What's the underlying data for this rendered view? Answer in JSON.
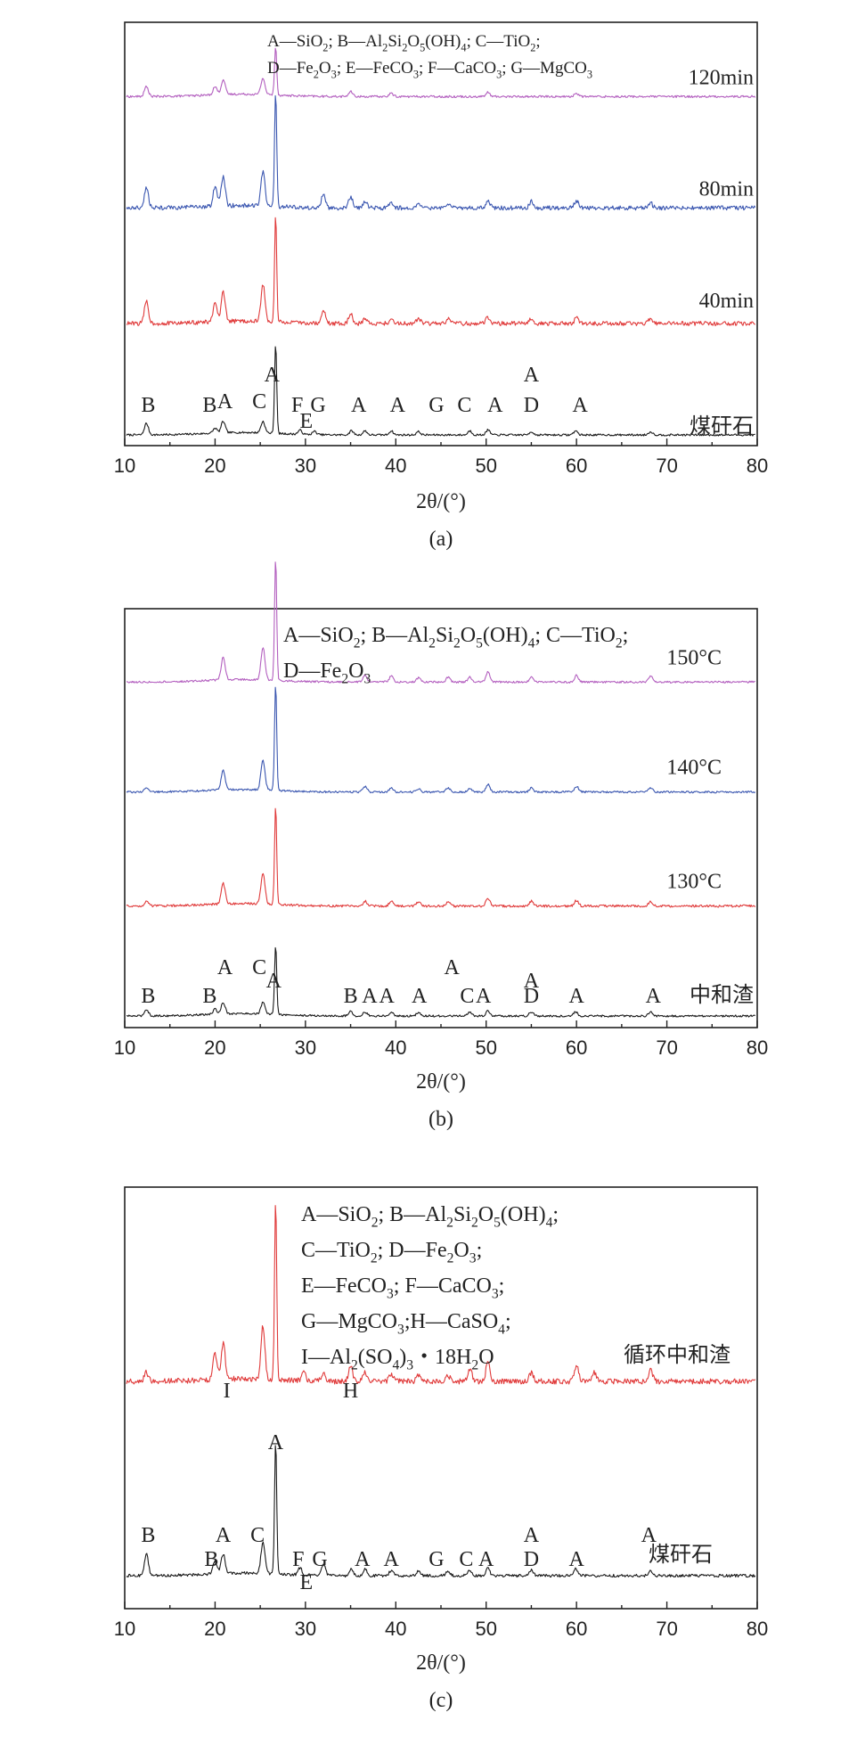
{
  "chart_data": [
    {
      "type": "line",
      "panel": "(a)",
      "xlabel": "2θ/(°)",
      "xlim": [
        10,
        80
      ],
      "x_ticks": [
        "10",
        "20",
        "30",
        "40",
        "50",
        "60",
        "70",
        "80"
      ],
      "legend_lines": [
        "A—SiO₂; B—Al₂Si₂O₅(OH)₄; C—TiO₂;",
        "D—Fe₂O₃; E—FeCO₃; F—CaCO₃; G—MgCO₃"
      ],
      "series": [
        {
          "name": "煤矸石",
          "color": "#1a1a1a",
          "offset": 0,
          "peaks": [
            [
              12.4,
              14
            ],
            [
              20.0,
              6
            ],
            [
              20.9,
              14
            ],
            [
              25.3,
              14
            ],
            [
              26.7,
              110
            ],
            [
              29.4,
              5
            ],
            [
              31.0,
              4
            ],
            [
              35.1,
              5
            ],
            [
              36.6,
              5
            ],
            [
              39.5,
              5
            ],
            [
              42.5,
              4
            ],
            [
              48.2,
              5
            ],
            [
              50.2,
              6
            ],
            [
              55.0,
              4
            ],
            [
              59.9,
              5
            ],
            [
              68.2,
              4
            ]
          ],
          "noise": 1.2
        },
        {
          "name": "40min",
          "color": "#e03a3a",
          "offset": 0.27,
          "peaks": [
            [
              12.4,
              28
            ],
            [
              20.0,
              22
            ],
            [
              20.9,
              35
            ],
            [
              25.3,
              45
            ],
            [
              26.7,
              130
            ],
            [
              32.0,
              15
            ],
            [
              35.0,
              12
            ],
            [
              36.6,
              6
            ],
            [
              39.5,
              6
            ],
            [
              42.5,
              6
            ],
            [
              45.8,
              5
            ],
            [
              50.2,
              8
            ],
            [
              55.0,
              7
            ],
            [
              60.0,
              7
            ],
            [
              68.2,
              6
            ]
          ],
          "noise": 2.6
        },
        {
          "name": "80min",
          "color": "#3a56b0",
          "offset": 0.55,
          "peaks": [
            [
              12.4,
              26
            ],
            [
              20.0,
              24
            ],
            [
              20.9,
              36
            ],
            [
              25.3,
              42
            ],
            [
              26.7,
              140
            ],
            [
              32.0,
              17
            ],
            [
              35.0,
              14
            ],
            [
              36.6,
              8
            ],
            [
              39.5,
              7
            ],
            [
              42.5,
              6
            ],
            [
              45.8,
              6
            ],
            [
              50.2,
              9
            ],
            [
              55.0,
              8
            ],
            [
              60.0,
              9
            ],
            [
              68.2,
              6
            ]
          ],
          "noise": 2.6
        },
        {
          "name": "120min",
          "color": "#b35fbf",
          "offset": 0.82,
          "peaks": [
            [
              12.4,
              12
            ],
            [
              20.0,
              10
            ],
            [
              20.9,
              18
            ],
            [
              25.3,
              20
            ],
            [
              26.7,
              60
            ],
            [
              35.0,
              6
            ],
            [
              39.5,
              4
            ],
            [
              50.2,
              5
            ],
            [
              60.0,
              4
            ]
          ],
          "noise": 1.3
        }
      ],
      "series_labels": [
        "煤矸石",
        "40min",
        "80min",
        "120min"
      ],
      "peak_labels": [
        {
          "text": "B",
          "x": 12.6,
          "row": 2
        },
        {
          "text": "B",
          "x": 19.4,
          "row": 2
        },
        {
          "text": "A",
          "x": 21.1,
          "row": 1
        },
        {
          "text": "C",
          "x": 24.9,
          "row": 1
        },
        {
          "text": "A",
          "x": 26.3,
          "row": 0
        },
        {
          "text": "F",
          "x": 29.1,
          "row": 2
        },
        {
          "text": "E",
          "x": 30.1,
          "row": 3
        },
        {
          "text": "G",
          "x": 31.4,
          "row": 2
        },
        {
          "text": "A",
          "x": 35.9,
          "row": 2
        },
        {
          "text": "A",
          "x": 40.2,
          "row": 2
        },
        {
          "text": "G",
          "x": 44.5,
          "row": 2
        },
        {
          "text": "C",
          "x": 47.6,
          "row": 2
        },
        {
          "text": "A",
          "x": 51.0,
          "row": 2
        },
        {
          "text": "A",
          "x": 55.0,
          "row": 0
        },
        {
          "text": "D",
          "x": 55.0,
          "row": 2
        },
        {
          "text": "A",
          "x": 60.4,
          "row": 2
        }
      ]
    },
    {
      "type": "line",
      "panel": "(b)",
      "xlabel": "2θ/(°)",
      "xlim": [
        10,
        80
      ],
      "x_ticks": [
        "10",
        "20",
        "30",
        "40",
        "50",
        "60",
        "70",
        "80"
      ],
      "legend_lines": [
        "A—SiO₂; B—Al₂Si₂O₅(OH)₄; C—TiO₂;",
        "D—Fe₂O₃"
      ],
      "series": [
        {
          "name": "中和渣",
          "color": "#1a1a1a",
          "offset": 0,
          "peaks": [
            [
              12.4,
              8
            ],
            [
              20.0,
              6
            ],
            [
              20.9,
              14
            ],
            [
              25.3,
              14
            ],
            [
              26.7,
              85
            ],
            [
              35.0,
              6
            ],
            [
              36.6,
              5
            ],
            [
              39.5,
              5
            ],
            [
              42.5,
              4
            ],
            [
              48.2,
              5
            ],
            [
              50.2,
              6
            ],
            [
              55.0,
              5
            ],
            [
              59.9,
              5
            ],
            [
              68.2,
              5
            ]
          ],
          "noise": 1.2
        },
        {
          "name": "130°C",
          "color": "#e03a3a",
          "offset": 0.27,
          "peaks": [
            [
              12.4,
              6
            ],
            [
              20.9,
              25
            ],
            [
              25.3,
              38
            ],
            [
              26.7,
              120
            ],
            [
              36.6,
              6
            ],
            [
              39.5,
              6
            ],
            [
              42.5,
              5
            ],
            [
              45.8,
              5
            ],
            [
              50.2,
              9
            ],
            [
              55.0,
              6
            ],
            [
              60.0,
              7
            ],
            [
              68.2,
              6
            ]
          ],
          "noise": 1.4
        },
        {
          "name": "140°C",
          "color": "#3a56b0",
          "offset": 0.55,
          "peaks": [
            [
              12.4,
              4
            ],
            [
              20.9,
              24
            ],
            [
              25.3,
              36
            ],
            [
              26.7,
              130
            ],
            [
              36.6,
              7
            ],
            [
              39.5,
              5
            ],
            [
              42.5,
              4
            ],
            [
              45.8,
              5
            ],
            [
              48.2,
              5
            ],
            [
              50.2,
              9
            ],
            [
              55.0,
              5
            ],
            [
              60.0,
              7
            ],
            [
              68.2,
              5
            ]
          ],
          "noise": 1.2
        },
        {
          "name": "150°C",
          "color": "#b35fbf",
          "offset": 0.82,
          "peaks": [
            [
              20.9,
              28
            ],
            [
              25.3,
              40
            ],
            [
              26.7,
              150
            ],
            [
              36.6,
              8
            ],
            [
              39.5,
              7
            ],
            [
              42.5,
              5
            ],
            [
              45.8,
              6
            ],
            [
              48.2,
              6
            ],
            [
              50.2,
              12
            ],
            [
              55.0,
              6
            ],
            [
              60.0,
              8
            ],
            [
              68.2,
              7
            ]
          ],
          "noise": 1.2
        }
      ],
      "series_labels": [
        "中和渣",
        "130°C",
        "140°C",
        "150°C"
      ],
      "peak_labels": [
        {
          "text": "B",
          "x": 12.6,
          "row": 2
        },
        {
          "text": "B",
          "x": 19.4,
          "row": 2
        },
        {
          "text": "A",
          "x": 21.1,
          "row": 1
        },
        {
          "text": "C",
          "x": 24.9,
          "row": 1
        },
        {
          "text": "A",
          "x": 26.5,
          "row": 0
        },
        {
          "text": "B",
          "x": 35.0,
          "row": 2
        },
        {
          "text": "A",
          "x": 37.1,
          "row": 2
        },
        {
          "text": "A",
          "x": 39.0,
          "row": 2
        },
        {
          "text": "A",
          "x": 42.6,
          "row": 2
        },
        {
          "text": "A",
          "x": 46.2,
          "row": 1
        },
        {
          "text": "C",
          "x": 47.9,
          "row": 2
        },
        {
          "text": "A",
          "x": 49.7,
          "row": 2
        },
        {
          "text": "A",
          "x": 55.0,
          "row": 0
        },
        {
          "text": "D",
          "x": 55.0,
          "row": 2
        },
        {
          "text": "A",
          "x": 60.0,
          "row": 2
        },
        {
          "text": "A",
          "x": 68.5,
          "row": 2
        }
      ]
    },
    {
      "type": "line",
      "panel": "(c)",
      "xlabel": "2θ/(°)",
      "xlim": [
        10,
        80
      ],
      "x_ticks": [
        "10",
        "20",
        "30",
        "40",
        "50",
        "60",
        "70",
        "80"
      ],
      "legend_lines": [
        "A—SiO₂; B—Al₂Si₂O₅(OH)₄;",
        "C—TiO₂; D—Fe₂O₃;",
        "E—FeCO₃; F—CaCO₃;",
        "G—MgCO₃;H—CaSO₄;",
        "I—Al₂(SO₄)₃・18H₂O"
      ],
      "series": [
        {
          "name": "煤矸石",
          "color": "#1a1a1a",
          "offset": 0,
          "peaks": [
            [
              12.4,
              24
            ],
            [
              20.0,
              14
            ],
            [
              20.9,
              22
            ],
            [
              25.3,
              35
            ],
            [
              26.7,
              150
            ],
            [
              29.4,
              8
            ],
            [
              32.0,
              12
            ],
            [
              35.1,
              7
            ],
            [
              36.6,
              7
            ],
            [
              39.5,
              6
            ],
            [
              42.5,
              5
            ],
            [
              45.8,
              5
            ],
            [
              48.2,
              6
            ],
            [
              50.2,
              8
            ],
            [
              55.0,
              6
            ],
            [
              59.9,
              8
            ],
            [
              68.2,
              6
            ]
          ],
          "noise": 1.6
        },
        {
          "name": "循环中和渣",
          "color": "#e03a3a",
          "offset": 0.5,
          "peaks": [
            [
              12.4,
              10
            ],
            [
              20.0,
              30
            ],
            [
              20.9,
              40
            ],
            [
              25.3,
              60
            ],
            [
              26.7,
              200
            ],
            [
              29.8,
              10
            ],
            [
              32.0,
              10
            ],
            [
              35.0,
              18
            ],
            [
              36.6,
              10
            ],
            [
              39.5,
              8
            ],
            [
              42.5,
              7
            ],
            [
              45.8,
              6
            ],
            [
              48.2,
              14
            ],
            [
              50.2,
              22
            ],
            [
              55.0,
              10
            ],
            [
              60.0,
              18
            ],
            [
              62.0,
              10
            ],
            [
              68.2,
              14
            ]
          ],
          "noise": 3.0
        }
      ],
      "series_labels": [
        "循环中和渣",
        "煤矸石"
      ],
      "peak_labels": [
        {
          "text": "I",
          "x": 21.3,
          "row": 0
        },
        {
          "text": "H",
          "x": 35.0,
          "row": 0
        },
        {
          "text": "A",
          "x": 26.7,
          "row": -1
        },
        {
          "text": "B",
          "x": 12.6,
          "row": 2
        },
        {
          "text": "B",
          "x": 19.6,
          "row": 3
        },
        {
          "text": "A",
          "x": 20.9,
          "row": 2
        },
        {
          "text": "C",
          "x": 24.7,
          "row": 2
        },
        {
          "text": "F",
          "x": 29.2,
          "row": 3
        },
        {
          "text": "E",
          "x": 30.1,
          "row": 4
        },
        {
          "text": "G",
          "x": 31.6,
          "row": 3
        },
        {
          "text": "A",
          "x": 36.3,
          "row": 3
        },
        {
          "text": "A",
          "x": 39.5,
          "row": 3
        },
        {
          "text": "G",
          "x": 44.5,
          "row": 3
        },
        {
          "text": "C",
          "x": 47.8,
          "row": 3
        },
        {
          "text": "A",
          "x": 50.0,
          "row": 3
        },
        {
          "text": "A",
          "x": 55.0,
          "row": 2
        },
        {
          "text": "D",
          "x": 55.0,
          "row": 3
        },
        {
          "text": "A",
          "x": 60.0,
          "row": 3
        },
        {
          "text": "A",
          "x": 68.0,
          "row": 2
        }
      ]
    }
  ]
}
